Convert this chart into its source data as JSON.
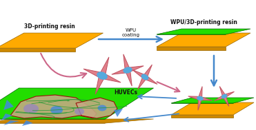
{
  "bg_color": "#ffffff",
  "label_3d_resin": "3D-printing resin",
  "label_wpu_resin": "WPU/3D-printing resin",
  "label_wpu_coating": "WPU\ncoating",
  "label_huvecs": "HUVECs",
  "orange_color": "#FFAA00",
  "orange_dark": "#CC8800",
  "green_color": "#22DD00",
  "green_dark": "#009900",
  "pink_body": "#E0808A",
  "pink_dark": "#C05060",
  "blue_nuc": "#55AADD",
  "blue_arrow": "#4488CC",
  "pink_arrow": "#CC6688",
  "tan_cell": "#C4A882",
  "purple_nuc": "#9988BB",
  "blue_spike": "#4488DD",
  "teal_line": "#229933",
  "dark_red": "#990000",
  "text_color": "#111111"
}
